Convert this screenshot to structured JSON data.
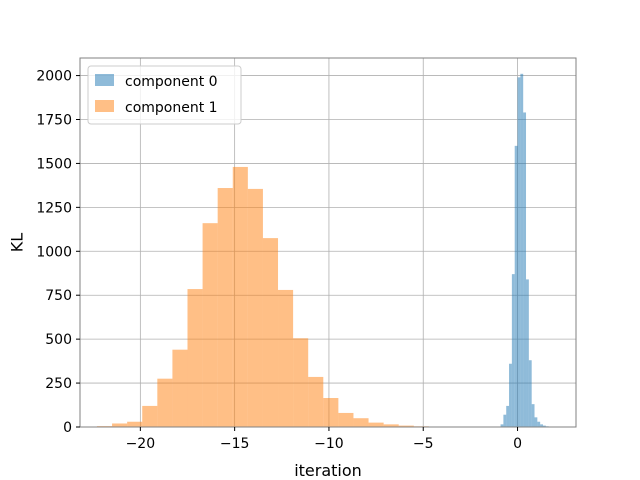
{
  "chart_data": {
    "type": "histogram",
    "title": "",
    "xlabel": "iteration",
    "ylabel": "KL",
    "xlim": [
      -23.2,
      3.1
    ],
    "ylim": [
      0,
      2100
    ],
    "grid": true,
    "legend_position": "top-left",
    "x_ticks": [
      -20,
      -15,
      -10,
      -5,
      0
    ],
    "x_tick_labels": [
      "−20",
      "−15",
      "−10",
      "−5",
      "0"
    ],
    "y_ticks": [
      0,
      250,
      500,
      750,
      1000,
      1250,
      1500,
      1750,
      2000
    ],
    "y_tick_labels": [
      "0",
      "250",
      "500",
      "750",
      "1000",
      "1250",
      "1500",
      "1750",
      "2000"
    ],
    "series": [
      {
        "name": "component 0",
        "color": "#1f77b4",
        "opacity": 0.5,
        "bin_edges": [
          -0.9,
          -0.75,
          -0.6,
          -0.45,
          -0.3,
          -0.15,
          0.0,
          0.15,
          0.3,
          0.45,
          0.6,
          0.75,
          0.9,
          1.05,
          1.2,
          1.35,
          1.5,
          1.65,
          1.8,
          1.95
        ],
        "counts": [
          15,
          70,
          120,
          360,
          870,
          1600,
          1990,
          2010,
          1790,
          840,
          380,
          130,
          55,
          30,
          15,
          8,
          4,
          2,
          1
        ]
      },
      {
        "name": "component 1",
        "color": "#ff7f0e",
        "opacity": 0.5,
        "bin_edges": [
          -22.3,
          -21.5,
          -20.7,
          -19.9,
          -19.1,
          -18.3,
          -17.5,
          -16.7,
          -15.9,
          -15.1,
          -14.3,
          -13.5,
          -12.7,
          -11.9,
          -11.1,
          -10.3,
          -9.5,
          -8.7,
          -7.9,
          -7.1,
          -6.3,
          -5.5,
          -4.7,
          -3.9
        ],
        "counts": [
          5,
          20,
          30,
          120,
          275,
          440,
          785,
          1160,
          1360,
          1480,
          1355,
          1075,
          780,
          505,
          285,
          165,
          80,
          50,
          25,
          15,
          8,
          4,
          2
        ]
      }
    ]
  }
}
